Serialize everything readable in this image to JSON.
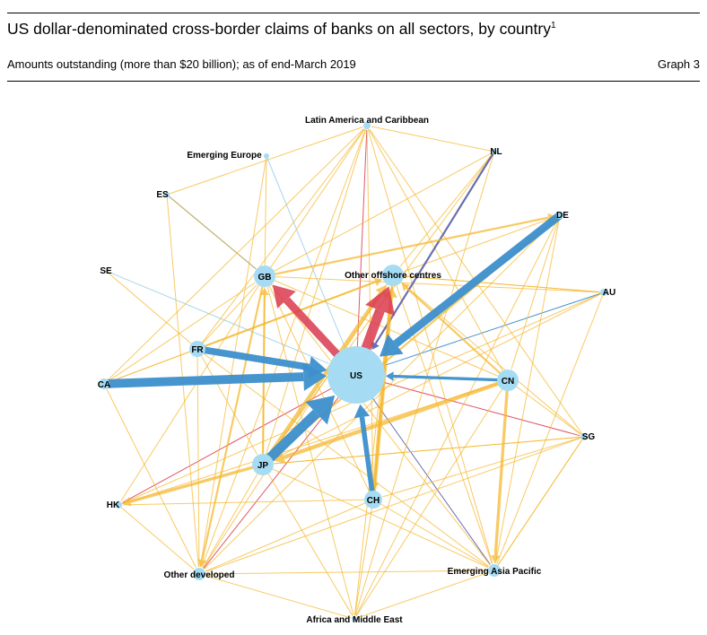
{
  "header": {
    "title": "US dollar-denominated cross-border claims of banks on all sectors, by country",
    "footnote_marker": "1",
    "subtitle": "Amounts outstanding (more than $20 billion); as of end-March 2019",
    "graph_number": "Graph 3"
  },
  "network": {
    "colors": {
      "node": "#a6dcf3",
      "blue_edge": "#3d8fcc",
      "light_blue_edge": "#9fd0e8",
      "yellow_edge": "#f5b52a",
      "red_edge": "#d93a4d",
      "purple_edge": "#5a5fa8"
    },
    "nodes": [
      {
        "id": "US",
        "label": "US"
      },
      {
        "id": "GB",
        "label": "GB"
      },
      {
        "id": "OOC",
        "label": "Other offshore centres"
      },
      {
        "id": "FR",
        "label": "FR"
      },
      {
        "id": "CA",
        "label": "CA"
      },
      {
        "id": "CN",
        "label": "CN"
      },
      {
        "id": "JP",
        "label": "JP"
      },
      {
        "id": "CH",
        "label": "CH"
      },
      {
        "id": "LAC",
        "label": "Latin America and Caribbean"
      },
      {
        "id": "EE",
        "label": "Emerging Europe"
      },
      {
        "id": "NL",
        "label": "NL"
      },
      {
        "id": "ES",
        "label": "ES"
      },
      {
        "id": "DE",
        "label": "DE"
      },
      {
        "id": "SE",
        "label": "SE"
      },
      {
        "id": "AU",
        "label": "AU"
      },
      {
        "id": "SG",
        "label": "SG"
      },
      {
        "id": "HK",
        "label": "HK"
      },
      {
        "id": "OD",
        "label": "Other developed"
      },
      {
        "id": "EAP",
        "label": "Emerging Asia Pacific"
      },
      {
        "id": "AME",
        "label": "Africa and Middle East"
      }
    ],
    "edges": [
      {
        "from": "CA",
        "to": "US",
        "color": "blue",
        "weight": 9
      },
      {
        "from": "DE",
        "to": "US",
        "color": "blue",
        "weight": 8
      },
      {
        "from": "JP",
        "to": "US",
        "color": "blue",
        "weight": 10
      },
      {
        "from": "FR",
        "to": "US",
        "color": "blue",
        "weight": 7
      },
      {
        "from": "CH",
        "to": "US",
        "color": "blue",
        "weight": 5
      },
      {
        "from": "CN",
        "to": "US",
        "color": "blue",
        "weight": 3
      },
      {
        "from": "AU",
        "to": "US",
        "color": "blue",
        "weight": 1
      },
      {
        "from": "ES",
        "to": "GB",
        "color": "blue",
        "weight": 1
      },
      {
        "from": "EE",
        "to": "US",
        "color": "light_blue",
        "weight": 1
      },
      {
        "from": "SE",
        "to": "US",
        "color": "light_blue",
        "weight": 1
      },
      {
        "from": "US",
        "to": "GB",
        "color": "red",
        "weight": 8
      },
      {
        "from": "US",
        "to": "OOC",
        "color": "red",
        "weight": 10
      },
      {
        "from": "US",
        "to": "OD",
        "color": "red",
        "weight": 1
      },
      {
        "from": "US",
        "to": "LAC",
        "color": "red",
        "weight": 1
      },
      {
        "from": "US",
        "to": "SG",
        "color": "red",
        "weight": 1
      },
      {
        "from": "US",
        "to": "HK",
        "color": "red",
        "weight": 1
      },
      {
        "from": "NL",
        "to": "US",
        "color": "purple",
        "weight": 2
      },
      {
        "from": "US",
        "to": "EAP",
        "color": "purple",
        "weight": 1
      },
      {
        "from": "JP",
        "to": "OOC",
        "color": "yellow",
        "weight": 4
      },
      {
        "from": "CH",
        "to": "OOC",
        "color": "yellow",
        "weight": 4
      },
      {
        "from": "CN",
        "to": "JP",
        "color": "yellow",
        "weight": 4
      },
      {
        "from": "CN",
        "to": "EAP",
        "color": "yellow",
        "weight": 3
      },
      {
        "from": "JP",
        "to": "HK",
        "color": "yellow",
        "weight": 3
      },
      {
        "from": "GB",
        "to": "OD",
        "color": "yellow",
        "weight": 2
      },
      {
        "from": "GB",
        "to": "DE",
        "color": "yellow",
        "weight": 2
      },
      {
        "from": "OOC",
        "to": "CH",
        "color": "yellow",
        "weight": 2
      },
      {
        "from": "CN",
        "to": "OOC",
        "color": "yellow",
        "weight": 2
      },
      {
        "from": "FR",
        "to": "OOC",
        "color": "yellow",
        "weight": 2
      },
      {
        "from": "JP",
        "to": "GB",
        "color": "yellow",
        "weight": 2
      },
      {
        "from": "DE",
        "to": "JP",
        "color": "yellow",
        "weight": 2
      },
      {
        "from": "JP",
        "to": "SG",
        "color": "yellow",
        "weight": 1
      },
      {
        "from": "GB",
        "to": "AU",
        "color": "yellow",
        "weight": 1
      },
      {
        "from": "GB",
        "to": "CN",
        "color": "yellow",
        "weight": 1
      },
      {
        "from": "GB",
        "to": "LAC",
        "color": "yellow",
        "weight": 1
      },
      {
        "from": "GB",
        "to": "EE",
        "color": "yellow",
        "weight": 1
      },
      {
        "from": "GB",
        "to": "ES",
        "color": "yellow",
        "weight": 1
      },
      {
        "from": "GB",
        "to": "NL",
        "color": "yellow",
        "weight": 1
      },
      {
        "from": "GB",
        "to": "JP",
        "color": "yellow",
        "weight": 1
      },
      {
        "from": "GB",
        "to": "CH",
        "color": "yellow",
        "weight": 1
      },
      {
        "from": "GB",
        "to": "AME",
        "color": "yellow",
        "weight": 1
      },
      {
        "from": "GB",
        "to": "HK",
        "color": "yellow",
        "weight": 1
      },
      {
        "from": "GB",
        "to": "EAP",
        "color": "yellow",
        "weight": 1
      },
      {
        "from": "FR",
        "to": "GB",
        "color": "yellow",
        "weight": 1
      },
      {
        "from": "FR",
        "to": "CA",
        "color": "yellow",
        "weight": 1
      },
      {
        "from": "FR",
        "to": "JP",
        "color": "yellow",
        "weight": 1
      },
      {
        "from": "FR",
        "to": "OD",
        "color": "yellow",
        "weight": 1
      },
      {
        "from": "FR",
        "to": "SE",
        "color": "yellow",
        "weight": 1
      },
      {
        "from": "FR",
        "to": "LAC",
        "color": "yellow",
        "weight": 1
      },
      {
        "from": "FR",
        "to": "EAP",
        "color": "yellow",
        "weight": 1
      },
      {
        "from": "CA",
        "to": "GB",
        "color": "yellow",
        "weight": 1
      },
      {
        "from": "CA",
        "to": "OD",
        "color": "yellow",
        "weight": 1
      },
      {
        "from": "CA",
        "to": "LAC",
        "color": "yellow",
        "weight": 1
      },
      {
        "from": "CA",
        "to": "OOC",
        "color": "yellow",
        "weight": 1
      },
      {
        "from": "ES",
        "to": "LAC",
        "color": "yellow",
        "weight": 1
      },
      {
        "from": "ES",
        "to": "OD",
        "color": "yellow",
        "weight": 1
      },
      {
        "from": "EE",
        "to": "OD",
        "color": "yellow",
        "weight": 1
      },
      {
        "from": "NL",
        "to": "OOC",
        "color": "yellow",
        "weight": 1
      },
      {
        "from": "NL",
        "to": "AME",
        "color": "yellow",
        "weight": 1
      },
      {
        "from": "NL",
        "to": "JP",
        "color": "yellow",
        "weight": 1
      },
      {
        "from": "NL",
        "to": "LAC",
        "color": "yellow",
        "weight": 1
      },
      {
        "from": "DE",
        "to": "OOC",
        "color": "yellow",
        "weight": 1
      },
      {
        "from": "DE",
        "to": "OD",
        "color": "yellow",
        "weight": 1
      },
      {
        "from": "DE",
        "to": "AME",
        "color": "yellow",
        "weight": 1
      },
      {
        "from": "DE",
        "to": "EAP",
        "color": "yellow",
        "weight": 1
      },
      {
        "from": "DE",
        "to": "CN",
        "color": "yellow",
        "weight": 1
      },
      {
        "from": "AU",
        "to": "OOC",
        "color": "yellow",
        "weight": 1
      },
      {
        "from": "AU",
        "to": "JP",
        "color": "yellow",
        "weight": 1
      },
      {
        "from": "AU",
        "to": "EAP",
        "color": "yellow",
        "weight": 1
      },
      {
        "from": "AU",
        "to": "HK",
        "color": "yellow",
        "weight": 1
      },
      {
        "from": "SG",
        "to": "OOC",
        "color": "yellow",
        "weight": 1
      },
      {
        "from": "SG",
        "to": "CH",
        "color": "yellow",
        "weight": 1
      },
      {
        "from": "SG",
        "to": "JP",
        "color": "yellow",
        "weight": 1
      },
      {
        "from": "SG",
        "to": "LAC",
        "color": "yellow",
        "weight": 1
      },
      {
        "from": "SG",
        "to": "OD",
        "color": "yellow",
        "weight": 1
      },
      {
        "from": "SG",
        "to": "EAP",
        "color": "yellow",
        "weight": 1
      },
      {
        "from": "CN",
        "to": "LAC",
        "color": "yellow",
        "weight": 1
      },
      {
        "from": "CN",
        "to": "AME",
        "color": "yellow",
        "weight": 1
      },
      {
        "from": "CN",
        "to": "SG",
        "color": "yellow",
        "weight": 1
      },
      {
        "from": "CH",
        "to": "AME",
        "color": "yellow",
        "weight": 1
      },
      {
        "from": "CH",
        "to": "EAP",
        "color": "yellow",
        "weight": 1
      },
      {
        "from": "CH",
        "to": "HK",
        "color": "yellow",
        "weight": 1
      },
      {
        "from": "CH",
        "to": "OD",
        "color": "yellow",
        "weight": 1
      },
      {
        "from": "CH",
        "to": "LAC",
        "color": "yellow",
        "weight": 1
      },
      {
        "from": "JP",
        "to": "AME",
        "color": "yellow",
        "weight": 1
      },
      {
        "from": "JP",
        "to": "LAC",
        "color": "yellow",
        "weight": 1
      },
      {
        "from": "JP",
        "to": "OD",
        "color": "yellow",
        "weight": 1
      },
      {
        "from": "JP",
        "to": "EAP",
        "color": "yellow",
        "weight": 1
      },
      {
        "from": "OOC",
        "to": "EAP",
        "color": "yellow",
        "weight": 1
      },
      {
        "from": "OOC",
        "to": "AME",
        "color": "yellow",
        "weight": 1
      },
      {
        "from": "OOC",
        "to": "AU",
        "color": "yellow",
        "weight": 1
      },
      {
        "from": "OOC",
        "to": "OD",
        "color": "yellow",
        "weight": 1
      },
      {
        "from": "LAC",
        "to": "EAP",
        "color": "yellow",
        "weight": 1
      },
      {
        "from": "LAC",
        "to": "OD",
        "color": "yellow",
        "weight": 1
      },
      {
        "from": "OD",
        "to": "EAP",
        "color": "yellow",
        "weight": 1
      },
      {
        "from": "OD",
        "to": "AME",
        "color": "yellow",
        "weight": 1
      },
      {
        "from": "HK",
        "to": "CN",
        "color": "yellow",
        "weight": 1
      },
      {
        "from": "HK",
        "to": "OD",
        "color": "yellow",
        "weight": 1
      },
      {
        "from": "EAP",
        "to": "AME",
        "color": "yellow",
        "weight": 1
      },
      {
        "from": "EAP",
        "to": "SG",
        "color": "yellow",
        "weight": 1
      }
    ]
  }
}
